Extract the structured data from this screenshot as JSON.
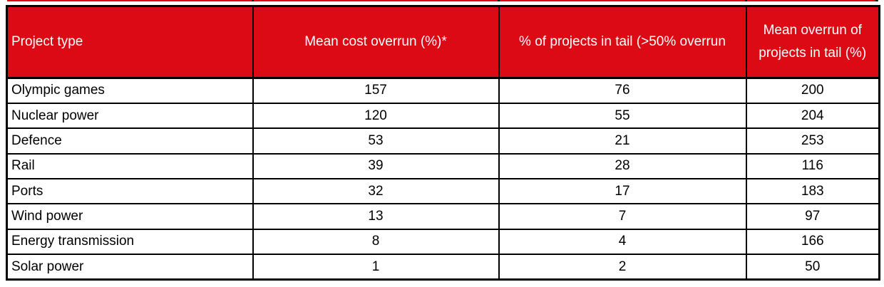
{
  "colors": {
    "header_bg": "#DC0A14",
    "header_text": "#FFFFFF",
    "body_text": "#000000",
    "border": "#000000",
    "background": "#FFFFFF"
  },
  "chart_data": {
    "type": "table",
    "title": "",
    "columns": [
      "Project type",
      "Mean cost overrun (%)*",
      "% of projects in tail (>50% overrun",
      "Mean overrun of projects in tail (%)"
    ],
    "rows": [
      [
        "Olympic games",
        157,
        76,
        200
      ],
      [
        "Nuclear power",
        120,
        55,
        204
      ],
      [
        "Defence",
        53,
        21,
        253
      ],
      [
        "Rail",
        39,
        28,
        116
      ],
      [
        "Ports",
        32,
        17,
        183
      ],
      [
        "Wind power",
        13,
        7,
        97
      ],
      [
        "Energy transmission",
        8,
        4,
        166
      ],
      [
        "Solar power",
        1,
        2,
        50
      ]
    ],
    "layout": {
      "header_fill": "#DC0A14",
      "header_text_color": "#FFFFFF",
      "grid_on": true
    }
  }
}
